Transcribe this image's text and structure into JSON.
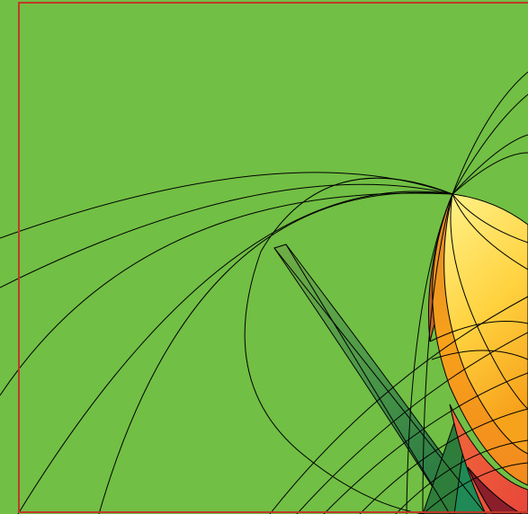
{
  "artwork": {
    "background_color": "#71bf44",
    "frame_color": "#c0392b",
    "line_color": "#000000",
    "fill_colors": {
      "yellow": "#ffe66d",
      "orange": "#f7a21b",
      "red_orange": "#ef5a3a",
      "dark_red": "#8b1e2b",
      "dark_green": "#2e7d3a",
      "teal_green": "#1f8a55",
      "olive": "#6a9a3a"
    }
  }
}
